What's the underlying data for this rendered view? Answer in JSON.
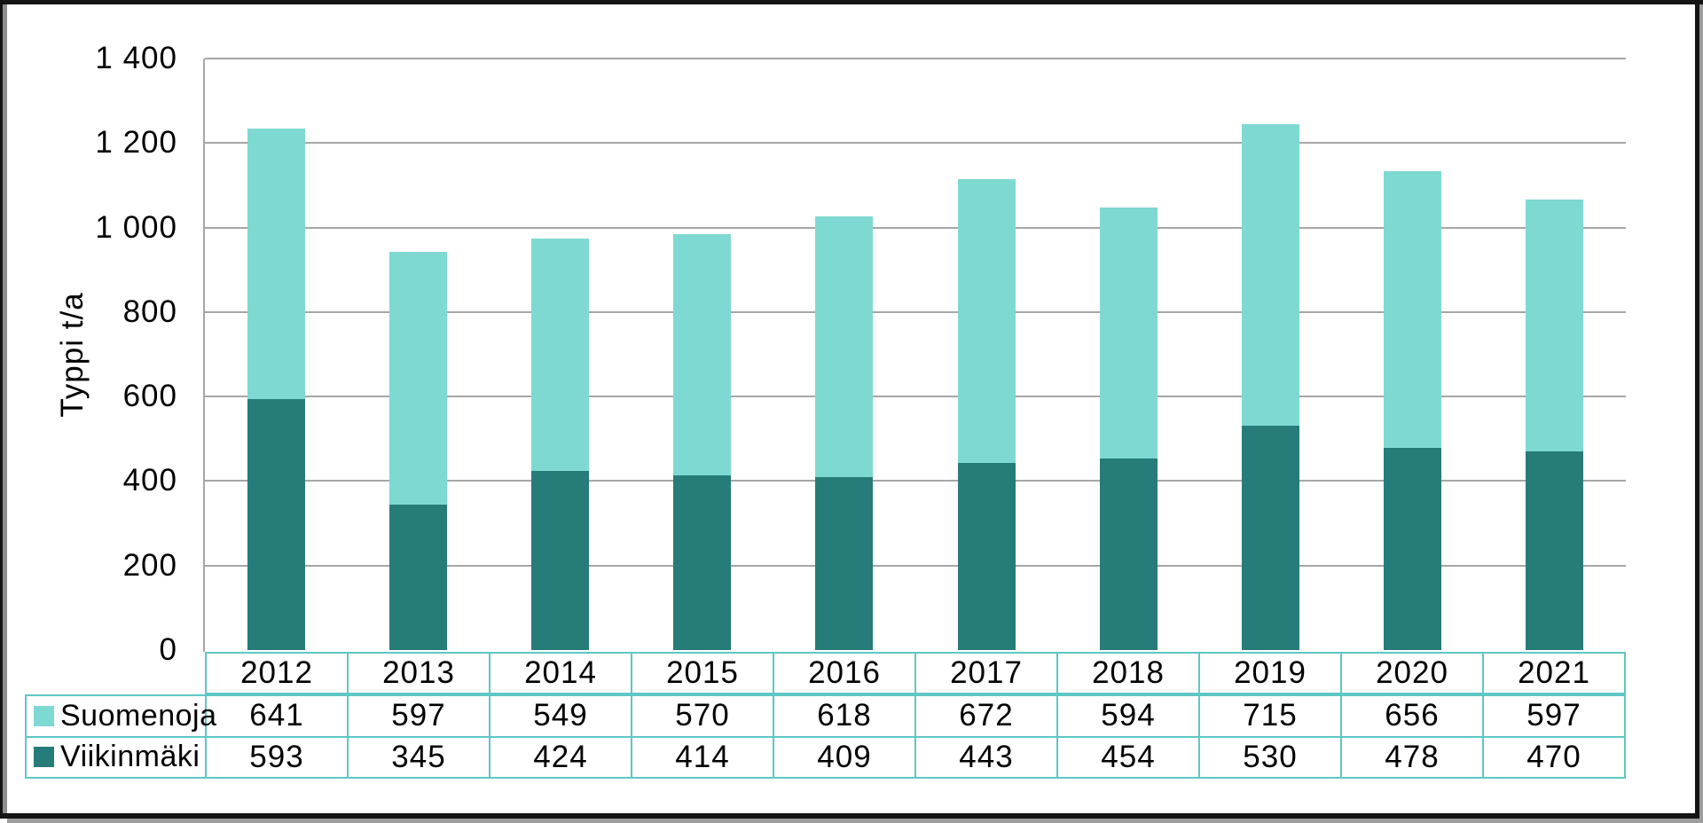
{
  "frame": {
    "border_color": "#141414",
    "shadow_color": "#9d9d9d",
    "background": "#ffffff"
  },
  "chart_data": {
    "type": "bar",
    "stacked": true,
    "title": "",
    "xlabel": "",
    "ylabel": "Typpi t/a",
    "categories": [
      "2012",
      "2013",
      "2014",
      "2015",
      "2016",
      "2017",
      "2018",
      "2019",
      "2020",
      "2021"
    ],
    "series": [
      {
        "name": "Suomenoja",
        "color": "#7FD9D3",
        "stack_position": "top",
        "values": [
          641,
          597,
          549,
          570,
          618,
          672,
          594,
          715,
          656,
          597
        ]
      },
      {
        "name": "Viikinmäki",
        "color": "#267C79",
        "stack_position": "bottom",
        "values": [
          593,
          345,
          424,
          414,
          409,
          443,
          454,
          530,
          478,
          470
        ]
      }
    ],
    "totals": [
      1234,
      942,
      973,
      984,
      1027,
      1115,
      1048,
      1245,
      1134,
      1067
    ],
    "ylim": [
      0,
      1400
    ],
    "ytick_step": 200,
    "ytick_labels": [
      "0",
      "200",
      "400",
      "600",
      "800",
      "1 000",
      "1 200",
      "1 400"
    ],
    "grid": true,
    "gridline_color": "#A6A6A6",
    "axis_color": "#A6A6A6",
    "legend_position": "data-table-left-column",
    "data_table": true,
    "table_border_color": "#5EC7C4",
    "text_color": "#000000"
  }
}
